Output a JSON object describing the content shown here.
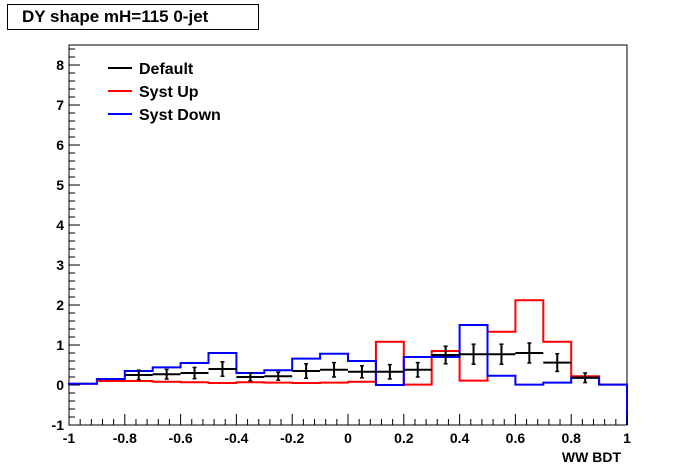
{
  "title": "DY shape mH=115 0-jet",
  "chart_data": {
    "type": "line",
    "title": "DY shape mH=115 0-jet",
    "xlabel": "WW BDT",
    "ylabel": "",
    "xlim": [
      -1,
      1
    ],
    "ylim": [
      -1,
      8.5
    ],
    "xticks": [
      -1,
      -0.8,
      -0.6,
      -0.4,
      -0.2,
      0,
      0.2,
      0.4,
      0.6,
      0.8,
      1
    ],
    "xtick_labels": [
      "-1",
      "-0.8",
      "-0.6",
      "-0.4",
      "-0.2",
      "0",
      "0.2",
      "0.4",
      "0.6",
      "0.8",
      "1"
    ],
    "yticks": [
      -1,
      0,
      1,
      2,
      3,
      4,
      5,
      6,
      7,
      8
    ],
    "ytick_labels": [
      "-1",
      "0",
      "1",
      "2",
      "3",
      "4",
      "5",
      "6",
      "7",
      "8"
    ],
    "grid": false,
    "legend_position": "top-left",
    "bin_edges": [
      -1,
      -0.9,
      -0.8,
      -0.7,
      -0.6,
      -0.5,
      -0.4,
      -0.3,
      -0.2,
      -0.1,
      0,
      0.1,
      0.2,
      0.3,
      0.4,
      0.5,
      0.6,
      0.7,
      0.8,
      0.9,
      1
    ],
    "series": [
      {
        "name": "Default",
        "color": "#000000",
        "style": "points-with-errors",
        "values": [
          null,
          null,
          0.25,
          0.27,
          0.3,
          0.4,
          0.2,
          0.22,
          0.35,
          0.38,
          0.33,
          0.33,
          0.38,
          0.75,
          0.77,
          0.77,
          0.8,
          0.56,
          0.18,
          null
        ],
        "errors": [
          null,
          null,
          0.12,
          0.12,
          0.14,
          0.18,
          0.1,
          0.1,
          0.18,
          0.18,
          0.15,
          0.18,
          0.18,
          0.22,
          0.25,
          0.25,
          0.25,
          0.22,
          0.12,
          null
        ]
      },
      {
        "name": "Syst Up",
        "color": "#ff0000",
        "style": "step",
        "values": [
          0.03,
          0.1,
          0.1,
          0.08,
          0.07,
          0.05,
          0.07,
          0.06,
          0.05,
          0.06,
          0.08,
          1.08,
          0.01,
          0.85,
          0.11,
          1.33,
          2.12,
          1.08,
          0.22,
          0.01
        ]
      },
      {
        "name": "Syst Down",
        "color": "#0000ff",
        "style": "step",
        "values": [
          0.03,
          0.15,
          0.35,
          0.44,
          0.55,
          0.8,
          0.3,
          0.37,
          0.66,
          0.78,
          0.6,
          0.0,
          0.7,
          0.7,
          1.5,
          0.23,
          0.01,
          0.06,
          0.18,
          0.01
        ]
      }
    ]
  }
}
